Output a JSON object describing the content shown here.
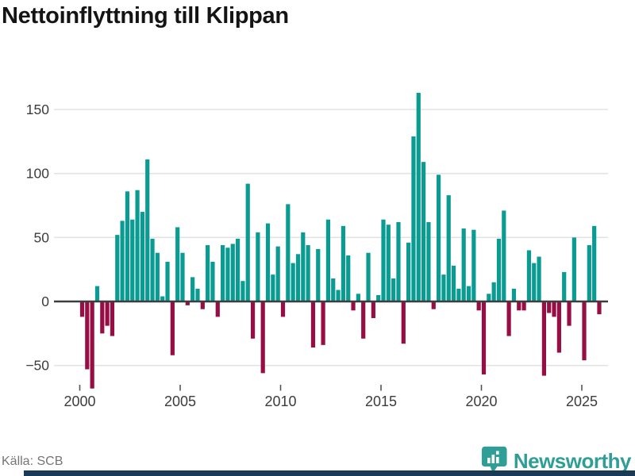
{
  "header": {
    "title": "Nettoinflyttning till Klippan"
  },
  "footer": {
    "source": "Källa: SCB",
    "brand": "Newsworthy"
  },
  "colors": {
    "positive_bar": "#0a9c92",
    "negative_bar": "#970e45",
    "gridline": "#e3e3e3",
    "zero_axis": "#3d3d3d",
    "tick_label": "#3c3c3c",
    "title_text": "#141414",
    "source_text": "#757575",
    "brand_teal": "#2f9e96",
    "footer_bar": "#1b3a55"
  },
  "chart_data": {
    "type": "bar",
    "title": "Nettoinflyttning till Klippan",
    "frequency": "quarterly",
    "start_year": 2000,
    "start_quarter": 1,
    "x_tick_labels": [
      "2000",
      "2005",
      "2010",
      "2015",
      "2020",
      "2025"
    ],
    "x_tick_years": [
      2000,
      2005,
      2010,
      2015,
      2020,
      2025
    ],
    "y_ticks": [
      150,
      100,
      50,
      0,
      -50
    ],
    "y_tick_labels": [
      "150",
      "100",
      "50",
      "0",
      "−50"
    ],
    "ylim": [
      -75,
      172
    ],
    "grid": "horizontal",
    "legend": "none",
    "values": [
      -12,
      -53,
      -68,
      12,
      -25,
      -19,
      -27,
      52,
      63,
      86,
      64,
      87,
      70,
      111,
      49,
      38,
      4,
      31,
      -42,
      58,
      38,
      -3,
      19,
      10,
      -6,
      44,
      31,
      -12,
      44,
      42,
      45,
      49,
      16,
      92,
      -29,
      54,
      -56,
      61,
      21,
      43,
      -12,
      76,
      30,
      37,
      54,
      44,
      -36,
      41,
      -34,
      64,
      18,
      9,
      59,
      36,
      -7,
      6,
      -29,
      38,
      -13,
      5,
      64,
      60,
      18,
      62,
      -33,
      46,
      129,
      163,
      109,
      62,
      -6,
      99,
      21,
      83,
      28,
      10,
      57,
      12,
      56,
      -7,
      -57,
      6,
      15,
      49,
      71,
      -27,
      10,
      -7,
      -7,
      40,
      30,
      35,
      -58,
      -9,
      -12,
      -40,
      23,
      -19,
      50,
      0,
      -46,
      44,
      59,
      -10
    ]
  }
}
